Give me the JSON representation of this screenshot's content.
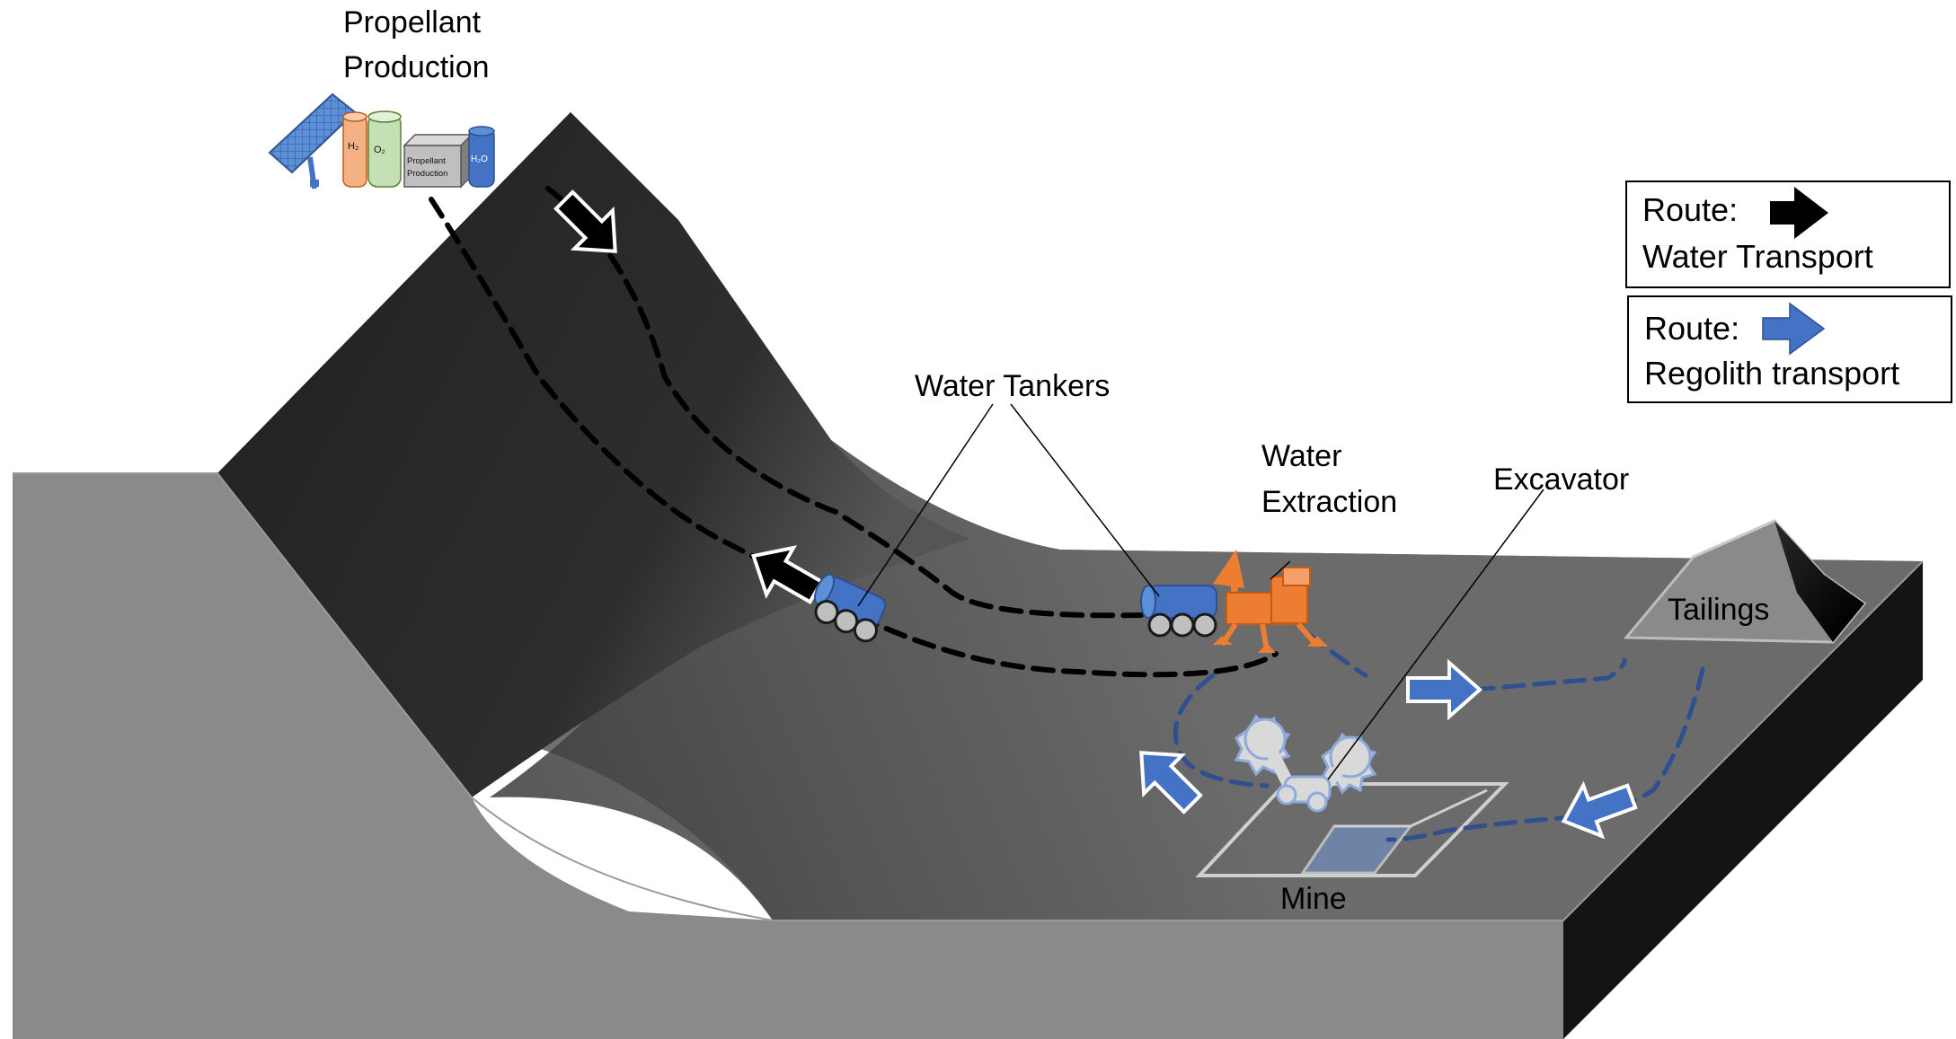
{
  "labels": {
    "propellant_line1": "Propellant",
    "propellant_line2": "Production",
    "water_tankers": "Water Tankers",
    "water_extraction_line1": "Water",
    "water_extraction_line2": "Extraction",
    "excavator": "Excavator",
    "tailings": "Tailings",
    "mine": "Mine"
  },
  "facility": {
    "h2": "H₂",
    "o2": "O₂",
    "box_line1": "Propellant",
    "box_line2": "Production",
    "h2o": "H₂O"
  },
  "legend": [
    {
      "route": "Route:",
      "desc": "Water Transport",
      "arrow_color": "#000000"
    },
    {
      "route": "Route:",
      "desc": "Regolith transport",
      "arrow_color": "#4472c4"
    }
  ],
  "colors": {
    "tanker_blue": "#4472c4",
    "extractor_orange": "#ed7d31",
    "regolith_path": "#2f4f8f",
    "h2_tank": "#f4b183",
    "o2_tank": "#c5e0b4"
  }
}
